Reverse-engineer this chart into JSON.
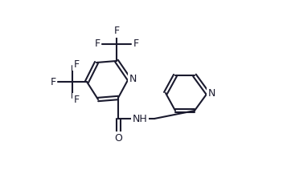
{
  "bg_color": "#ffffff",
  "line_color": "#1a1a2e",
  "line_width": 1.5,
  "font_size": 9,
  "atoms": {
    "N_label": "N",
    "H_label": "H",
    "O_label": "O",
    "N2_label": "N"
  }
}
